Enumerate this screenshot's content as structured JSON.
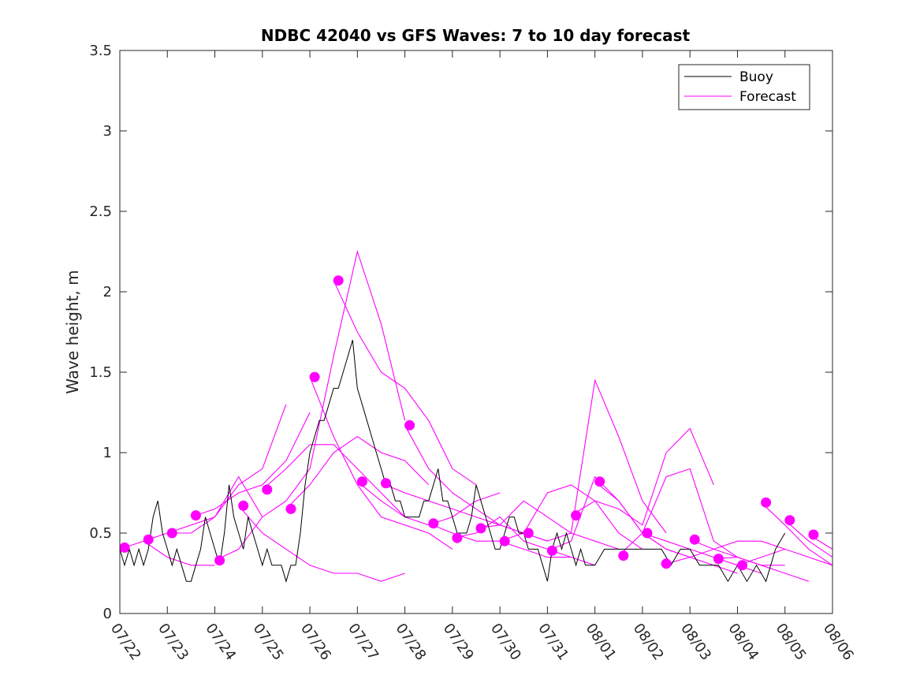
{
  "chart_data": {
    "type": "line",
    "title": "NDBC 42040 vs GFS Waves: 7 to 10 day forecast",
    "xlabel": "",
    "ylabel": "Wave height, m",
    "ylim": [
      0,
      3.5
    ],
    "xlim": [
      "07/22",
      "08/06"
    ],
    "yticks": [
      "0",
      "0.5",
      "1",
      "1.5",
      "2",
      "2.5",
      "3",
      "3.5"
    ],
    "xticks": [
      "07/22",
      "07/23",
      "07/24",
      "07/25",
      "07/26",
      "07/27",
      "07/28",
      "07/29",
      "07/30",
      "07/31",
      "08/01",
      "08/02",
      "08/03",
      "08/04",
      "08/05",
      "08/06"
    ],
    "grid": false,
    "legend_position": "top-right",
    "colors": {
      "buoy": "#000000",
      "forecast": "#ff00ff"
    },
    "buoy": {
      "name": "Buoy",
      "x_days": [
        0,
        0.1,
        0.2,
        0.3,
        0.4,
        0.5,
        0.6,
        0.7,
        0.8,
        0.9,
        1.0,
        1.1,
        1.2,
        1.3,
        1.4,
        1.5,
        1.6,
        1.7,
        1.8,
        1.9,
        2.0,
        2.1,
        2.2,
        2.3,
        2.4,
        2.5,
        2.6,
        2.7,
        2.8,
        2.9,
        3.0,
        3.1,
        3.2,
        3.3,
        3.4,
        3.5,
        3.6,
        3.7,
        3.8,
        3.9,
        4.0,
        4.1,
        4.2,
        4.3,
        4.4,
        4.5,
        4.6,
        4.7,
        4.8,
        4.9,
        5.0,
        5.1,
        5.2,
        5.3,
        5.4,
        5.5,
        5.6,
        5.7,
        5.8,
        5.9,
        6.0,
        6.1,
        6.2,
        6.3,
        6.4,
        6.5,
        6.6,
        6.7,
        6.8,
        6.9,
        7.0,
        7.1,
        7.2,
        7.3,
        7.4,
        7.5,
        7.6,
        7.7,
        7.8,
        7.9,
        8.0,
        8.1,
        8.2,
        8.3,
        8.4,
        8.5,
        8.6,
        8.7,
        8.8,
        8.9,
        9.0,
        9.1,
        9.2,
        9.3,
        9.4,
        9.5,
        9.6,
        9.7,
        9.8,
        9.9,
        10.0,
        10.2,
        10.4,
        10.6,
        10.8,
        11.0,
        11.2,
        11.4,
        11.6,
        11.8,
        12.0,
        12.2,
        12.4,
        12.6,
        12.8,
        13.0,
        13.2,
        13.4,
        13.6,
        13.8,
        14.0
      ],
      "y": [
        0.4,
        0.3,
        0.4,
        0.3,
        0.4,
        0.3,
        0.4,
        0.6,
        0.7,
        0.5,
        0.4,
        0.3,
        0.4,
        0.3,
        0.2,
        0.2,
        0.3,
        0.4,
        0.6,
        0.5,
        0.4,
        0.3,
        0.5,
        0.8,
        0.6,
        0.5,
        0.4,
        0.6,
        0.5,
        0.4,
        0.3,
        0.4,
        0.3,
        0.3,
        0.3,
        0.2,
        0.3,
        0.3,
        0.5,
        0.8,
        1.0,
        1.1,
        1.2,
        1.2,
        1.3,
        1.4,
        1.4,
        1.5,
        1.6,
        1.7,
        1.4,
        1.3,
        1.2,
        1.1,
        1.0,
        0.9,
        0.8,
        0.8,
        0.7,
        0.7,
        0.6,
        0.6,
        0.6,
        0.6,
        0.7,
        0.7,
        0.8,
        0.9,
        0.7,
        0.7,
        0.6,
        0.5,
        0.5,
        0.5,
        0.6,
        0.8,
        0.7,
        0.6,
        0.5,
        0.4,
        0.4,
        0.5,
        0.6,
        0.6,
        0.5,
        0.5,
        0.4,
        0.4,
        0.4,
        0.3,
        0.2,
        0.4,
        0.5,
        0.4,
        0.5,
        0.4,
        0.3,
        0.4,
        0.3,
        0.3,
        0.3,
        0.4,
        0.4,
        0.4,
        0.4,
        0.4,
        0.4,
        0.4,
        0.3,
        0.4,
        0.4,
        0.3,
        0.3,
        0.3,
        0.2,
        0.3,
        0.2,
        0.3,
        0.2,
        0.4,
        0.5
      ]
    },
    "forecast": {
      "name": "Forecast",
      "series": [
        {
          "x_days": [
            0.0,
            0.5,
            1.0,
            1.5,
            2.0
          ],
          "y": [
            0.4,
            0.45,
            0.35,
            0.3,
            0.3
          ]
        },
        {
          "x_days": [
            0.5,
            1.0,
            1.5,
            2.0,
            2.5,
            3.0
          ],
          "y": [
            0.45,
            0.5,
            0.5,
            0.6,
            0.85,
            0.6
          ]
        },
        {
          "x_days": [
            1.0,
            1.5,
            2.0,
            2.5,
            3.0,
            3.5
          ],
          "y": [
            0.5,
            0.55,
            0.6,
            0.8,
            0.9,
            1.3
          ]
        },
        {
          "x_days": [
            1.5,
            2.0,
            2.5,
            3.0,
            3.5,
            4.0
          ],
          "y": [
            0.6,
            0.65,
            0.75,
            0.8,
            0.95,
            1.25
          ]
        },
        {
          "x_days": [
            2.0,
            2.5,
            3.0,
            3.5,
            4.0,
            4.5,
            5.0,
            5.5,
            6.0
          ],
          "y": [
            0.33,
            0.4,
            0.6,
            0.7,
            0.9,
            1.6,
            2.25,
            1.8,
            1.2
          ]
        },
        {
          "x_days": [
            2.5,
            3.0,
            3.5,
            4.0,
            4.5,
            5.0,
            5.5,
            6.0
          ],
          "y": [
            0.67,
            0.5,
            0.4,
            0.3,
            0.25,
            0.25,
            0.2,
            0.25
          ]
        },
        {
          "x_days": [
            3.0,
            3.5,
            4.0,
            4.5,
            5.0,
            5.5,
            6.0
          ],
          "y": [
            0.77,
            0.9,
            1.05,
            1.05,
            0.9,
            0.75,
            0.6
          ]
        },
        {
          "x_days": [
            3.5,
            4.0,
            4.5,
            5.0,
            5.5,
            6.0,
            6.5
          ],
          "y": [
            0.65,
            0.8,
            1.0,
            1.1,
            1.0,
            0.95,
            0.8
          ]
        },
        {
          "x_days": [
            4.0,
            4.5,
            5.0,
            5.5,
            6.0,
            6.5,
            7.0
          ],
          "y": [
            1.47,
            1.1,
            0.8,
            0.6,
            0.55,
            0.5,
            0.4
          ]
        },
        {
          "x_days": [
            4.5,
            5.0,
            5.5,
            6.0,
            6.5,
            7.0,
            7.5
          ],
          "y": [
            2.07,
            1.75,
            1.5,
            1.4,
            1.2,
            0.9,
            0.8
          ]
        },
        {
          "x_days": [
            5.0,
            5.5,
            6.0,
            6.5,
            7.0,
            7.5,
            8.0
          ],
          "y": [
            0.82,
            0.7,
            0.6,
            0.55,
            0.6,
            0.7,
            0.75
          ]
        },
        {
          "x_days": [
            5.5,
            6.0,
            6.5,
            7.0,
            7.5,
            8.0,
            8.5
          ],
          "y": [
            0.81,
            0.75,
            0.7,
            0.65,
            0.6,
            0.55,
            0.5
          ]
        },
        {
          "x_days": [
            6.0,
            6.5,
            7.0,
            7.5,
            8.0,
            8.5,
            9.0
          ],
          "y": [
            1.17,
            0.9,
            0.75,
            0.65,
            0.55,
            0.5,
            0.45
          ]
        },
        {
          "x_days": [
            6.5,
            7.0,
            7.5,
            8.0,
            8.5,
            9.0,
            9.5
          ],
          "y": [
            0.56,
            0.5,
            0.45,
            0.45,
            0.4,
            0.35,
            0.35
          ]
        },
        {
          "x_days": [
            7.0,
            7.5,
            8.0,
            8.5,
            9.0,
            9.5,
            10.0
          ],
          "y": [
            0.47,
            0.5,
            0.6,
            0.45,
            0.4,
            0.35,
            0.3
          ]
        },
        {
          "x_days": [
            7.5,
            8.0,
            8.5,
            9.0,
            9.5,
            10.0,
            10.5
          ],
          "y": [
            0.53,
            0.55,
            0.7,
            0.6,
            0.5,
            0.45,
            0.4
          ]
        },
        {
          "x_days": [
            8.0,
            8.5,
            9.0,
            9.5,
            10.0,
            10.5,
            11.0
          ],
          "y": [
            0.45,
            0.5,
            0.75,
            0.8,
            0.7,
            0.5,
            0.4
          ]
        },
        {
          "x_days": [
            8.5,
            9.0,
            9.5,
            10.0,
            10.5,
            11.0,
            11.5
          ],
          "y": [
            0.5,
            0.45,
            0.5,
            1.45,
            1.1,
            0.7,
            0.5
          ]
        },
        {
          "x_days": [
            9.0,
            9.5,
            10.0,
            10.5,
            11.0,
            11.5,
            12.0
          ],
          "y": [
            0.39,
            0.45,
            0.85,
            0.7,
            0.5,
            0.4,
            0.35
          ]
        },
        {
          "x_days": [
            9.5,
            10.0,
            10.5,
            11.0,
            11.5,
            12.0,
            12.5
          ],
          "y": [
            0.61,
            0.7,
            0.65,
            0.55,
            1.0,
            1.15,
            0.8
          ]
        },
        {
          "x_days": [
            10.0,
            10.5,
            11.0,
            11.5,
            12.0,
            12.5,
            13.0
          ],
          "y": [
            0.82,
            0.7,
            0.5,
            0.4,
            0.35,
            0.3,
            0.25
          ]
        },
        {
          "x_days": [
            10.5,
            11.0,
            11.5,
            12.0,
            12.5,
            13.0
          ],
          "y": [
            0.36,
            0.5,
            0.85,
            0.9,
            0.45,
            0.35
          ]
        },
        {
          "x_days": [
            11.0,
            11.5,
            12.0,
            12.5,
            13.0,
            13.5
          ],
          "y": [
            0.5,
            0.45,
            0.4,
            0.35,
            0.3,
            0.25
          ]
        },
        {
          "x_days": [
            11.5,
            12.0,
            12.5,
            13.0,
            13.5,
            14.0
          ],
          "y": [
            0.31,
            0.35,
            0.4,
            0.45,
            0.45,
            0.4
          ]
        },
        {
          "x_days": [
            12.0,
            12.5,
            13.0,
            13.5,
            14.0
          ],
          "y": [
            0.46,
            0.4,
            0.35,
            0.3,
            0.3
          ]
        },
        {
          "x_days": [
            12.5,
            13.0,
            13.5,
            14.0,
            14.5
          ],
          "y": [
            0.34,
            0.35,
            0.3,
            0.25,
            0.2
          ]
        },
        {
          "x_days": [
            13.0,
            13.5,
            14.0,
            14.5,
            15.0
          ],
          "y": [
            0.3,
            0.35,
            0.4,
            0.35,
            0.3
          ]
        },
        {
          "x_days": [
            13.5,
            14.0,
            14.5,
            15.0
          ],
          "y": [
            0.69,
            0.55,
            0.4,
            0.3
          ]
        },
        {
          "x_days": [
            14.0,
            14.5,
            15.0
          ],
          "y": [
            0.58,
            0.45,
            0.35
          ]
        },
        {
          "x_days": [
            14.5,
            15.0
          ],
          "y": [
            0.49,
            0.4
          ]
        }
      ],
      "markers": {
        "x_days": [
          0.1,
          0.6,
          1.1,
          1.6,
          2.1,
          2.6,
          3.1,
          3.6,
          4.1,
          4.6,
          5.1,
          5.6,
          6.1,
          6.6,
          7.1,
          7.6,
          8.1,
          8.6,
          9.1,
          9.6,
          10.1,
          10.6,
          11.1,
          11.5,
          12.1,
          12.6,
          13.1,
          13.6,
          14.1,
          14.6
        ],
        "y": [
          0.41,
          0.46,
          0.5,
          0.61,
          0.33,
          0.67,
          0.77,
          0.65,
          1.47,
          2.07,
          0.82,
          0.81,
          1.17,
          0.56,
          0.47,
          0.53,
          0.45,
          0.5,
          0.39,
          0.61,
          0.82,
          0.36,
          0.5,
          0.31,
          0.46,
          0.34,
          0.3,
          0.69,
          0.58,
          0.49
        ]
      }
    }
  }
}
